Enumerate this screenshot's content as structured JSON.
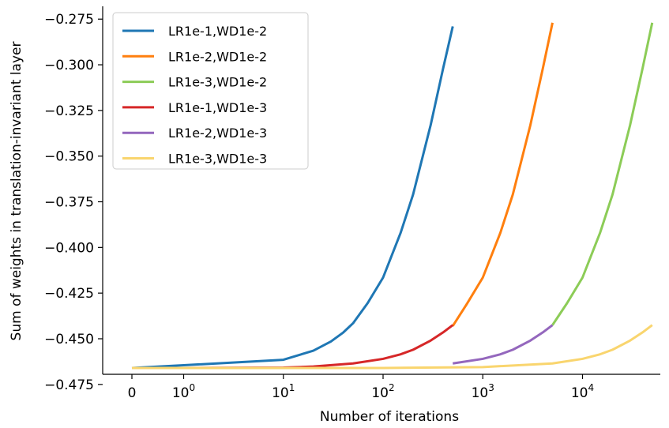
{
  "chart_data": {
    "type": "line",
    "title": "",
    "xlabel": "Number of iterations",
    "ylabel": "Sum of weights in translation-invariant layer",
    "x_scale": "symlog",
    "x_ticks": [
      {
        "value": 0,
        "label": "0"
      },
      {
        "value": 1,
        "label": "10",
        "exp": "0"
      },
      {
        "value": 10,
        "label": "10",
        "exp": "1"
      },
      {
        "value": 100,
        "label": "10",
        "exp": "2"
      },
      {
        "value": 1000,
        "label": "10",
        "exp": "3"
      },
      {
        "value": 10000,
        "label": "10",
        "exp": "4"
      }
    ],
    "ylim": [
      -0.475,
      -0.27
    ],
    "y_ticks": [
      {
        "value": -0.275,
        "label": "−0.275"
      },
      {
        "value": -0.3,
        "label": "−0.300"
      },
      {
        "value": -0.325,
        "label": "−0.325"
      },
      {
        "value": -0.35,
        "label": "−0.350"
      },
      {
        "value": -0.375,
        "label": "−0.375"
      },
      {
        "value": -0.4,
        "label": "−0.400"
      },
      {
        "value": -0.425,
        "label": "−0.425"
      },
      {
        "value": -0.45,
        "label": "−0.450"
      },
      {
        "value": -0.475,
        "label": "−0.475"
      }
    ],
    "legend_position": "top-left",
    "series": [
      {
        "name": "LR1e-1,WD1e-2",
        "color": "#1f77b4",
        "x": [
          0,
          1,
          10,
          20,
          30,
          40,
          50,
          70,
          100,
          150,
          200,
          300,
          400,
          500
        ],
        "y": [
          -0.466,
          -0.4645,
          -0.4615,
          -0.4565,
          -0.4515,
          -0.4465,
          -0.4415,
          -0.4305,
          -0.4165,
          -0.392,
          -0.371,
          -0.333,
          -0.302,
          -0.279
        ]
      },
      {
        "name": "LR1e-2,WD1e-2",
        "color": "#ff7f0e",
        "x": [
          500,
          700,
          1000,
          1500,
          2000,
          3000,
          4000,
          5000
        ],
        "y": [
          -0.443,
          -0.4305,
          -0.4165,
          -0.392,
          -0.371,
          -0.333,
          -0.302,
          -0.277
        ]
      },
      {
        "name": "LR1e-3,WD1e-2",
        "color": "#8ccc57",
        "x": [
          5000,
          7000,
          10000,
          15000,
          20000,
          30000,
          40000,
          50000
        ],
        "y": [
          -0.4425,
          -0.4305,
          -0.4165,
          -0.392,
          -0.371,
          -0.333,
          -0.302,
          -0.277
        ]
      },
      {
        "name": "LR1e-1,WD1e-3",
        "color": "#d62728",
        "x": [
          0,
          1,
          10,
          20,
          50,
          100,
          150,
          200,
          300,
          400,
          500
        ],
        "y": [
          -0.466,
          -0.466,
          -0.4658,
          -0.4652,
          -0.4635,
          -0.461,
          -0.4585,
          -0.456,
          -0.451,
          -0.4465,
          -0.4425
        ]
      },
      {
        "name": "LR1e-2,WD1e-3",
        "color": "#9467bd",
        "x": [
          500,
          1000,
          1500,
          2000,
          3000,
          4000,
          5000
        ],
        "y": [
          -0.4635,
          -0.461,
          -0.4585,
          -0.456,
          -0.451,
          -0.4465,
          -0.4425
        ]
      },
      {
        "name": "LR1e-3,WD1e-3",
        "color": "#f9d56e",
        "x": [
          0,
          1,
          10,
          100,
          1000,
          5000,
          10000,
          15000,
          20000,
          30000,
          40000,
          50000
        ],
        "y": [
          -0.466,
          -0.466,
          -0.466,
          -0.466,
          -0.4655,
          -0.4635,
          -0.461,
          -0.4585,
          -0.456,
          -0.451,
          -0.4465,
          -0.4425
        ]
      }
    ]
  }
}
